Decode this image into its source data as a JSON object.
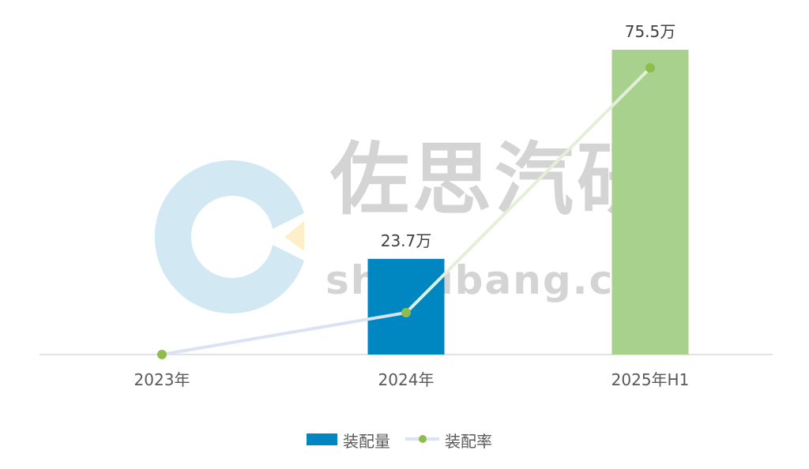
{
  "watermark": {
    "brand": "佐思汽研",
    "site": "shujubang.com"
  },
  "chart_data": {
    "type": "bar+line",
    "categories": [
      "2023年",
      "2024年",
      "2025年H1"
    ],
    "series": [
      {
        "name": "装配量",
        "type": "bar",
        "values": [
          0,
          23.7,
          75.5
        ],
        "unit": "万",
        "data_labels": [
          "",
          "23.7万",
          "75.5万"
        ],
        "colors": [
          "#0086c0",
          "#0086c0",
          "#a9d18e"
        ],
        "color": "#0086c0"
      },
      {
        "name": "装配率",
        "type": "line",
        "relative_values": [
          0,
          14.6,
          100
        ],
        "color": "#dae3f3",
        "marker_color": "#8fbc4a"
      }
    ],
    "ylim": [
      0,
      75.5
    ],
    "grid": false,
    "legend": "bottom",
    "title": "",
    "xlabel": "",
    "ylabel": ""
  }
}
